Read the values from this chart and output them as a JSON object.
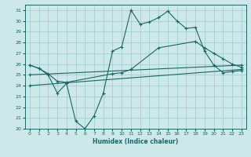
{
  "xlabel": "Humidex (Indice chaleur)",
  "bg_color": "#cce8e8",
  "grid_color": "#99cccc",
  "line_color": "#1a6666",
  "xlim": [
    -0.5,
    23.5
  ],
  "ylim": [
    20,
    31.5
  ],
  "xticks": [
    0,
    1,
    2,
    3,
    4,
    5,
    6,
    7,
    8,
    9,
    10,
    11,
    12,
    13,
    14,
    15,
    16,
    17,
    18,
    19,
    20,
    21,
    22,
    23
  ],
  "yticks": [
    20,
    21,
    22,
    23,
    24,
    25,
    26,
    27,
    28,
    29,
    30,
    31
  ],
  "series1_x": [
    0,
    1,
    2,
    3,
    4,
    5,
    6,
    7,
    8,
    9,
    10,
    11,
    12,
    13,
    14,
    15,
    16,
    17,
    18,
    19,
    20,
    21,
    22,
    23
  ],
  "series1_y": [
    25.9,
    25.6,
    25.0,
    23.3,
    24.2,
    20.7,
    20.0,
    21.2,
    23.3,
    27.2,
    27.6,
    31.0,
    29.7,
    29.9,
    30.3,
    30.9,
    30.0,
    29.3,
    29.4,
    27.2,
    25.9,
    25.2,
    25.3,
    25.4
  ],
  "series2_x": [
    0,
    1,
    2,
    3,
    4,
    9,
    10,
    11,
    14,
    18,
    19,
    20,
    21,
    22,
    23
  ],
  "series2_y": [
    25.9,
    25.6,
    25.1,
    24.4,
    24.3,
    25.1,
    25.2,
    25.5,
    27.5,
    28.1,
    27.5,
    27.0,
    26.5,
    26.0,
    25.7
  ],
  "series3_x": [
    0,
    23
  ],
  "series3_y": [
    25.0,
    25.9
  ],
  "series4_x": [
    0,
    23
  ],
  "series4_y": [
    24.0,
    25.5
  ]
}
